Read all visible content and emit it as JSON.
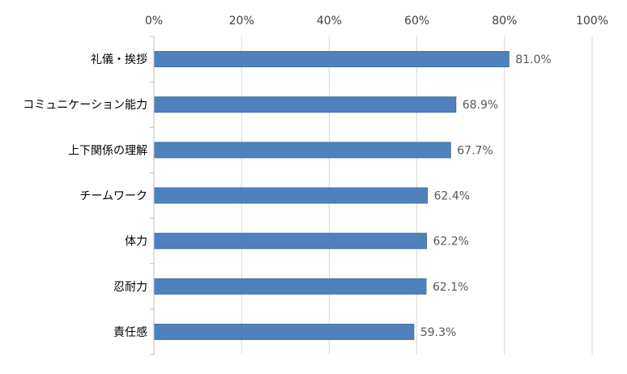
{
  "chart_data": {
    "type": "bar",
    "orientation": "horizontal",
    "categories": [
      "礼儀・挨拶",
      "コミュニケーション能力",
      "上下関係の理解",
      "チームワーク",
      "体力",
      "忍耐力",
      "責任感"
    ],
    "values": [
      81.0,
      68.9,
      67.7,
      62.4,
      62.2,
      62.1,
      59.3
    ],
    "data_labels": [
      "81.0%",
      "68.9%",
      "67.7%",
      "62.4%",
      "62.2%",
      "62.1%",
      "59.3%"
    ],
    "x_ticks": [
      "0%",
      "20%",
      "40%",
      "60%",
      "80%",
      "100%"
    ],
    "xlim": [
      0,
      100
    ],
    "x_axis_position": "top",
    "grid": true,
    "legend": "none",
    "bar_color": "#4f81bd",
    "bar_border_color": "#41719c"
  }
}
